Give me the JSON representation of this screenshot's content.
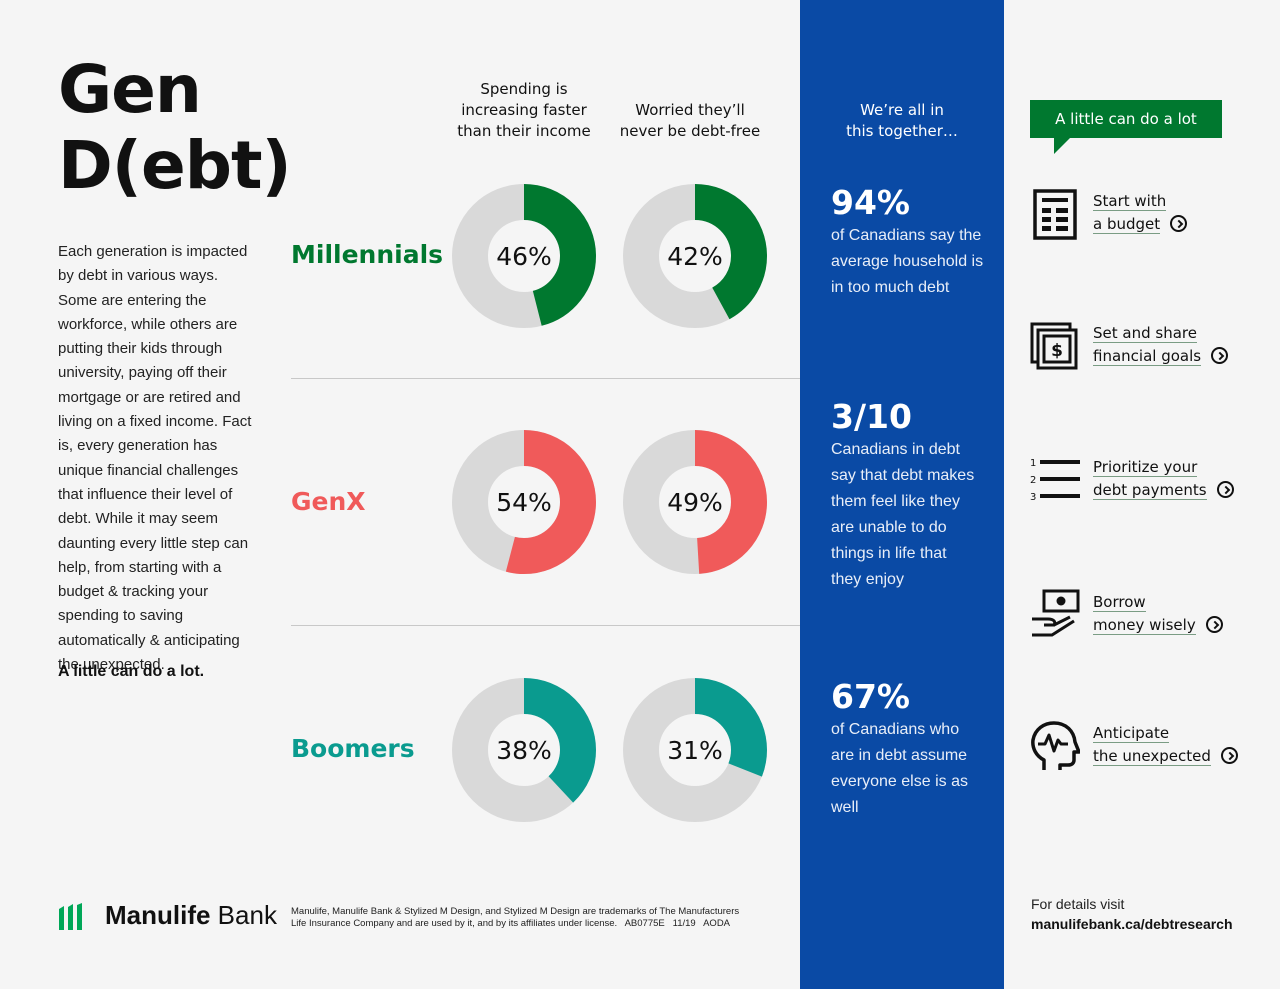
{
  "title": {
    "line1": "Gen",
    "line2": "D(ebt)"
  },
  "intro": "Each generation is impacted by debt in various ways. Some are entering the workforce, while others are putting their kids through university, paying off their mortgage or are retired and living on a fixed income. Fact is, every generation has unique financial challenges that influence their level of debt. While it may seem daunting every little step can help, from starting with a budget & tracking your spending to saving automatically & anticipating the unexpected.",
  "tagline": "A little can do a lot.",
  "colors": {
    "track": "#d9d9d9",
    "millennials": "#00782f",
    "genx": "#f05a5a",
    "boomers": "#0a9b8f",
    "blue_panel": "#0a4aa5"
  },
  "chart_data": {
    "type": "donut",
    "categories": [
      "Spending is increasing faster than their income",
      "Worried they'll never be debt-free"
    ],
    "series": [
      {
        "name": "Millennials",
        "values": [
          46,
          42
        ],
        "labels": [
          "46%",
          "42%"
        ],
        "color": "#00782f"
      },
      {
        "name": "GenX",
        "values": [
          54,
          49
        ],
        "labels": [
          "54%",
          "49%"
        ],
        "color": "#f05a5a"
      },
      {
        "name": "Boomers",
        "values": [
          38,
          31
        ],
        "labels": [
          "38%",
          "31%"
        ],
        "color": "#0a9b8f"
      }
    ]
  },
  "column_headers": [
    "Spending is increasing faster than their income",
    "Worried they’ll never be debt-free"
  ],
  "column_header_lines": [
    [
      "Spending is",
      "increasing faster",
      "than their income"
    ],
    [
      "Worried they’ll",
      "never be debt-free"
    ]
  ],
  "blue_panel": {
    "header_lines": [
      "We’re all in",
      "this together…"
    ],
    "stats": [
      {
        "value": "94%",
        "text": "of Canadians say the average household is in too much debt"
      },
      {
        "value": "3/10",
        "text": "Canadians in debt say that debt makes them feel like they are unable to do things in life that they enjoy"
      },
      {
        "value": "67%",
        "text": "of Canadians who are in debt assume everyone else is as well"
      }
    ]
  },
  "actions_badge": "A little can do a lot",
  "actions": [
    {
      "icon": "budget-document-icon",
      "line1": "Start with",
      "line2": "a budget"
    },
    {
      "icon": "money-goals-icon",
      "line1": "Set and share",
      "line2": "financial goals"
    },
    {
      "icon": "numbered-list-icon",
      "line1": "Prioritize your",
      "line2": "debt payments"
    },
    {
      "icon": "hand-money-icon",
      "line1": "Borrow",
      "line2": "money wisely"
    },
    {
      "icon": "head-heartbeat-icon",
      "line1": "Anticipate",
      "line2": "the unexpected"
    }
  ],
  "footer": {
    "brand_bold": "Manulife",
    "brand_light": " Bank",
    "legal_line1": "Manulife, Manulife Bank & Stylized M Design, and Stylized M Design are trademarks of The Manufacturers",
    "legal_line2": "Life Insurance Company and are used by it, and by its affiliates under license.   AB0775E   11/19   AODA",
    "details_label": "For details visit",
    "details_url": "manulifebank.ca/debtresearch"
  }
}
